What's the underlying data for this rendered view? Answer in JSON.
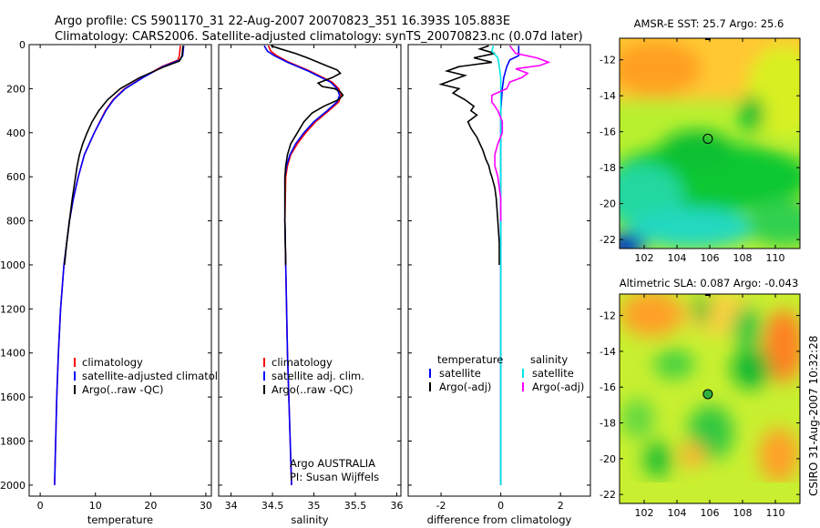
{
  "header": {
    "line1": "Argo profile: CS 5901170_31 22-Aug-2007 20070823_351 16.393S 105.883E",
    "line2": "Climatology: CARS2006. Satellite-adjusted climatology: synTS_20070823.nc (0.07d later)"
  },
  "side_stamp": "CSIRO 31-Aug-2007 10:32:28",
  "colors": {
    "clim": "#ff0000",
    "sat": "#0000ff",
    "argo": "#000000",
    "sal_sat": "#00e5e5",
    "sal_argo": "#ff00ff"
  },
  "chart_data": [
    {
      "type": "line",
      "id": "temperature",
      "xlabel": "temperature",
      "ylabel": "",
      "xlim": [
        -2,
        31
      ],
      "ylim": [
        2050,
        0
      ],
      "y_reversed": true,
      "xticks": [
        0,
        10,
        20,
        30
      ],
      "yticks": [
        0,
        200,
        400,
        600,
        800,
        1000,
        1200,
        1400,
        1600,
        1800,
        2000
      ],
      "legend": [
        "climatology",
        "satellite-adjusted climatology",
        "Argo(..raw -QC)"
      ],
      "series": [
        {
          "name": "climatology",
          "color": "#ff0000",
          "y": [
            5,
            25,
            50,
            70,
            100,
            150,
            200,
            250,
            300,
            400,
            500,
            600,
            700,
            800,
            1000,
            1200,
            1400,
            1600,
            1800,
            2000
          ],
          "x": [
            25.4,
            25.3,
            25.2,
            25.0,
            22.0,
            18.5,
            15.3,
            13.2,
            11.8,
            9.8,
            8.0,
            6.9,
            6.0,
            5.3,
            4.3,
            3.7,
            3.3,
            3.0,
            2.8,
            2.6
          ]
        },
        {
          "name": "satellite-adjusted climatology",
          "color": "#0000ff",
          "y": [
            5,
            25,
            50,
            70,
            100,
            150,
            200,
            250,
            300,
            400,
            500,
            600,
            700,
            800,
            1000,
            1200,
            1400,
            1600,
            1800,
            2000
          ],
          "x": [
            26.0,
            25.9,
            25.8,
            25.3,
            22.2,
            18.6,
            15.4,
            13.3,
            11.9,
            9.8,
            8.0,
            6.9,
            6.0,
            5.3,
            4.3,
            3.7,
            3.3,
            3.0,
            2.8,
            2.6
          ]
        },
        {
          "name": "Argo(..raw -QC)",
          "color": "#000000",
          "y": [
            5,
            20,
            50,
            75,
            100,
            150,
            200,
            250,
            300,
            350,
            400,
            450,
            500,
            550,
            600,
            650,
            700,
            800,
            900,
            1000
          ],
          "x": [
            25.9,
            25.8,
            25.7,
            25.2,
            22.5,
            18.0,
            14.5,
            12.2,
            10.6,
            9.4,
            8.5,
            7.7,
            7.1,
            6.7,
            6.4,
            6.1,
            5.8,
            5.3,
            4.8,
            4.4
          ]
        }
      ],
      "annotation": []
    },
    {
      "type": "line",
      "id": "salinity",
      "xlabel": "salinity",
      "ylabel": "",
      "xlim": [
        33.85,
        36.05
      ],
      "ylim": [
        2050,
        0
      ],
      "y_reversed": true,
      "xticks": [
        34,
        34.5,
        35,
        35.5,
        36
      ],
      "yticks": [],
      "legend": [
        "climatology",
        "satellite adj. clim.",
        "Argo(..raw -QC)"
      ],
      "series": [
        {
          "name": "climatology",
          "color": "#ff0000",
          "y": [
            5,
            30,
            50,
            80,
            120,
            170,
            200,
            230,
            260,
            300,
            350,
            400,
            450,
            500,
            550,
            600,
            800,
            1000,
            1400,
            2000
          ],
          "x": [
            34.45,
            34.48,
            34.55,
            34.7,
            34.95,
            35.22,
            35.3,
            35.33,
            35.3,
            35.18,
            35.02,
            34.9,
            34.8,
            34.72,
            34.68,
            34.66,
            34.65,
            34.66,
            34.68,
            34.73
          ]
        },
        {
          "name": "satellite adj. clim.",
          "color": "#0000ff",
          "y": [
            5,
            30,
            50,
            80,
            120,
            170,
            200,
            230,
            260,
            300,
            350,
            400,
            450,
            500,
            550,
            600,
            800,
            1000,
            1400,
            2000
          ],
          "x": [
            34.4,
            34.44,
            34.52,
            34.68,
            34.93,
            35.2,
            35.28,
            35.31,
            35.28,
            35.16,
            35.0,
            34.88,
            34.78,
            34.71,
            34.67,
            34.65,
            34.65,
            34.66,
            34.68,
            34.73
          ]
        },
        {
          "name": "Argo(..raw -QC)",
          "color": "#000000",
          "y": [
            5,
            20,
            40,
            60,
            80,
            100,
            115,
            130,
            150,
            175,
            190,
            200,
            215,
            230,
            250,
            280,
            310,
            350,
            400,
            450,
            500,
            550,
            600,
            800,
            1000
          ],
          "x": [
            34.48,
            34.6,
            34.78,
            34.92,
            35.05,
            35.18,
            35.28,
            35.32,
            35.22,
            35.05,
            35.1,
            35.25,
            35.32,
            35.35,
            35.3,
            35.12,
            34.98,
            34.88,
            34.8,
            34.72,
            34.68,
            34.66,
            34.65,
            34.65,
            34.66
          ]
        }
      ],
      "annotation": [
        "Argo AUSTRALIA",
        "PI: Susan Wijffels"
      ]
    },
    {
      "type": "line",
      "id": "difference",
      "xlabel": "difference from climatology",
      "ylabel": "",
      "xlim": [
        -3.1,
        3.0
      ],
      "ylim": [
        2050,
        0
      ],
      "y_reversed": true,
      "xticks": [
        -2,
        0,
        2
      ],
      "yticks": [],
      "legend": [
        "temperature",
        "satellite",
        "Argo(-adj)",
        "salinity",
        "satellite",
        "Argo(-adj)"
      ],
      "series": [
        {
          "name": "satellite",
          "color": "#0000ff",
          "y": [
            5,
            30,
            50,
            70,
            100,
            150,
            200,
            300,
            400,
            600,
            1000,
            1500,
            2000
          ],
          "x": [
            0.6,
            0.6,
            0.6,
            0.3,
            0.2,
            0.1,
            0.05,
            0.0,
            0.0,
            0.0,
            0.0,
            0.0,
            0.0
          ]
        },
        {
          "name": "Argo(-adj)",
          "color": "#000000",
          "y": [
            5,
            20,
            40,
            60,
            80,
            100,
            120,
            140,
            160,
            180,
            200,
            220,
            250,
            280,
            300,
            320,
            350,
            380,
            400,
            420,
            450,
            480,
            500,
            520,
            550,
            580,
            600,
            650,
            700,
            800,
            900,
            1000
          ],
          "x": [
            -0.4,
            -0.7,
            -0.2,
            -0.9,
            -0.3,
            -1.4,
            -1.8,
            -1.2,
            -1.6,
            -2.0,
            -1.4,
            -1.6,
            -1.2,
            -0.9,
            -1.0,
            -0.8,
            -1.1,
            -1.0,
            -0.9,
            -0.8,
            -0.7,
            -0.6,
            -0.55,
            -0.5,
            -0.4,
            -0.35,
            -0.3,
            -0.2,
            -0.15,
            -0.1,
            -0.05,
            -0.05
          ]
        },
        {
          "name": "satellite",
          "color": "#00e5e5",
          "y": [
            5,
            30,
            60,
            100,
            150,
            200,
            300,
            400,
            600,
            800,
            1000,
            1500,
            2000
          ],
          "x": [
            -0.25,
            -0.3,
            -0.1,
            -0.05,
            0.0,
            0.0,
            0.0,
            0.0,
            0.0,
            0.0,
            0.0,
            0.0,
            0.0
          ]
        },
        {
          "name": "Argo(-adj)",
          "color": "#ff00ff",
          "y": [
            5,
            40,
            60,
            80,
            95,
            110,
            130,
            150,
            170,
            200,
            230,
            260,
            280,
            300,
            350,
            400,
            450,
            500,
            550,
            600,
            700,
            800
          ],
          "x": [
            0.3,
            0.5,
            1.2,
            1.6,
            1.3,
            0.5,
            0.9,
            0.7,
            0.3,
            0.2,
            -0.3,
            -0.3,
            -0.2,
            -0.1,
            0.05,
            0.05,
            -0.1,
            -0.2,
            -0.2,
            -0.1,
            0.0,
            0.0
          ]
        }
      ],
      "annotation": []
    },
    {
      "type": "heatmap",
      "id": "sst-map",
      "title": "AMSR-E SST: 25.7 Argo: 25.6",
      "xlim": [
        100.5,
        111.5
      ],
      "ylim": [
        -22.5,
        -10.8
      ],
      "xticks": [
        102,
        104,
        106,
        108,
        110
      ],
      "yticks": [
        -12,
        -14,
        -16,
        -18,
        -20,
        -22
      ],
      "marker": {
        "lon": 105.883,
        "lat": -16.393
      }
    },
    {
      "type": "heatmap",
      "id": "sla-map",
      "title": "Altimetric SLA: 0.087 Argo: -0.043",
      "xlim": [
        100.5,
        111.5
      ],
      "ylim": [
        -22.5,
        -10.8
      ],
      "xticks": [
        102,
        104,
        106,
        108,
        110
      ],
      "yticks": [
        -12,
        -14,
        -16,
        -18,
        -20,
        -22
      ],
      "marker": {
        "lon": 105.883,
        "lat": -16.393
      }
    }
  ]
}
